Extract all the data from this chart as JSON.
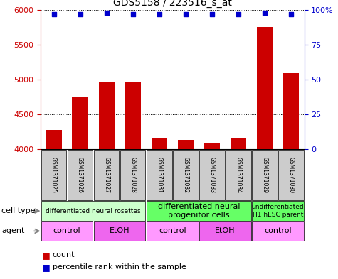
{
  "title": "GDS5158 / 223516_s_at",
  "samples": [
    "GSM1371025",
    "GSM1371026",
    "GSM1371027",
    "GSM1371028",
    "GSM1371031",
    "GSM1371032",
    "GSM1371033",
    "GSM1371034",
    "GSM1371029",
    "GSM1371030"
  ],
  "counts": [
    4280,
    4760,
    4960,
    4970,
    4170,
    4130,
    4080,
    4170,
    5750,
    5090
  ],
  "percentiles": [
    97,
    97,
    98,
    97,
    97,
    97,
    97,
    97,
    98,
    97
  ],
  "ylim_left": [
    4000,
    6000
  ],
  "ylim_right": [
    0,
    100
  ],
  "yticks_left": [
    4000,
    4500,
    5000,
    5500,
    6000
  ],
  "yticks_right": [
    0,
    25,
    50,
    75,
    100
  ],
  "bar_color": "#cc0000",
  "dot_color": "#0000cc",
  "bar_width": 0.6,
  "cell_type_groups": [
    {
      "label": "differentiated neural rosettes",
      "start": 0,
      "end": 3,
      "color": "#ccffcc",
      "fontsize": 6.5
    },
    {
      "label": "differentiated neural\nprogenitor cells",
      "start": 4,
      "end": 7,
      "color": "#66ff66",
      "fontsize": 8
    },
    {
      "label": "undifferentiated\nH1 hESC parent",
      "start": 8,
      "end": 9,
      "color": "#66ff66",
      "fontsize": 6.5
    }
  ],
  "agent_groups": [
    {
      "label": "control",
      "start": 0,
      "end": 1,
      "color": "#ff99ff"
    },
    {
      "label": "EtOH",
      "start": 2,
      "end": 3,
      "color": "#ee66ee"
    },
    {
      "label": "control",
      "start": 4,
      "end": 5,
      "color": "#ff99ff"
    },
    {
      "label": "EtOH",
      "start": 6,
      "end": 7,
      "color": "#ee66ee"
    },
    {
      "label": "control",
      "start": 8,
      "end": 9,
      "color": "#ff99ff"
    }
  ],
  "cell_type_label": "cell type",
  "agent_label": "agent",
  "legend_count_color": "#cc0000",
  "legend_dot_color": "#0000cc",
  "left_axis_color": "#cc0000",
  "right_axis_color": "#0000cc",
  "sample_box_color": "#cccccc"
}
